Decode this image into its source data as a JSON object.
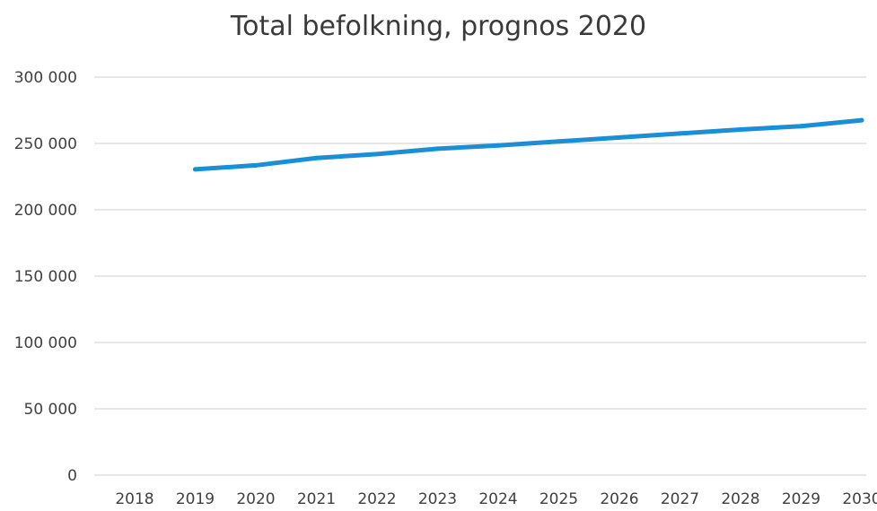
{
  "chart_data": {
    "type": "line",
    "title": "Total befolkning, prognos 2020",
    "xlabel": "",
    "ylabel": "",
    "categories": [
      "2018",
      "2019",
      "2020",
      "2021",
      "2022",
      "2023",
      "2024",
      "2025",
      "2026",
      "2027",
      "2028",
      "2029",
      "2030"
    ],
    "series": [
      {
        "values": [
          null,
          230500,
          233500,
          239000,
          242000,
          246000,
          248500,
          251500,
          254500,
          257500,
          260500,
          263000,
          267500
        ]
      }
    ],
    "ylim": [
      0,
      300000
    ],
    "y_ticks": [
      0,
      50000,
      100000,
      150000,
      200000,
      250000,
      300000
    ],
    "y_tick_labels": [
      "0",
      "50 000",
      "100 000",
      "150 000",
      "200 000",
      "250 000",
      "300 000"
    ],
    "grid": true,
    "legend": "none",
    "colors": {
      "line": "#1a8fd6",
      "grid": "#d9d9de",
      "text": "#404040"
    }
  }
}
